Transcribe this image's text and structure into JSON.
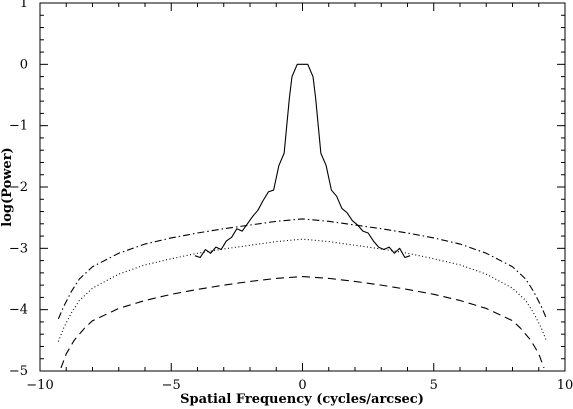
{
  "chart_data": {
    "type": "line",
    "title": "",
    "xlabel": "Spatial Frequency (cycles/arcsec)",
    "ylabel": "log(Power)",
    "xlim": [
      -10,
      10
    ],
    "ylim": [
      -5,
      1
    ],
    "xticks": [
      -10,
      -5,
      0,
      5,
      10
    ],
    "yticks": [
      -5,
      -4,
      -3,
      -2,
      -1,
      0,
      1
    ],
    "xtick_labels": [
      "−10",
      "−5",
      "0",
      "5",
      "10"
    ],
    "ytick_labels": [
      "−5",
      "−4",
      "−3",
      "−2",
      "−1",
      "0",
      "1"
    ],
    "grid": false,
    "legend": "none",
    "series": [
      {
        "style": "solid",
        "color": "#000000",
        "x": [
          -4.1,
          -3.9,
          -3.7,
          -3.5,
          -3.3,
          -3.1,
          -2.9,
          -2.7,
          -2.5,
          -2.3,
          -2.1,
          -1.9,
          -1.7,
          -1.5,
          -1.3,
          -1.1,
          -0.9,
          -0.7,
          -0.5,
          -0.4,
          -0.2,
          0.0,
          0.2,
          0.4,
          0.5,
          0.7,
          0.9,
          1.1,
          1.3,
          1.5,
          1.7,
          1.9,
          2.1,
          2.3,
          2.5,
          2.7,
          2.9,
          3.1,
          3.3,
          3.5,
          3.7,
          3.9,
          4.1
        ],
        "y": [
          -3.12,
          -3.15,
          -3.02,
          -3.08,
          -2.98,
          -3.02,
          -2.88,
          -2.82,
          -2.68,
          -2.72,
          -2.6,
          -2.48,
          -2.38,
          -2.22,
          -2.08,
          -2.05,
          -1.65,
          -1.45,
          -0.55,
          -0.2,
          0.0,
          0.0,
          0.0,
          -0.2,
          -0.55,
          -1.45,
          -1.65,
          -2.05,
          -2.15,
          -2.35,
          -2.42,
          -2.55,
          -2.62,
          -2.72,
          -2.75,
          -2.88,
          -2.98,
          -3.02,
          -2.98,
          -3.08,
          -3.0,
          -3.15,
          -3.12
        ]
      },
      {
        "style": "dash-dot",
        "color": "#000000",
        "x": [
          -9.3,
          -9.1,
          -8.8,
          -8.5,
          -8.0,
          -7.0,
          -6.0,
          -5.0,
          -4.0,
          -3.0,
          -2.0,
          -1.0,
          0.0,
          1.0,
          2.0,
          3.0,
          4.0,
          5.0,
          6.0,
          7.0,
          8.0,
          8.5,
          8.8,
          9.1,
          9.3
        ],
        "y": [
          -4.15,
          -3.95,
          -3.7,
          -3.5,
          -3.3,
          -3.08,
          -2.93,
          -2.83,
          -2.75,
          -2.68,
          -2.62,
          -2.56,
          -2.52,
          -2.56,
          -2.62,
          -2.68,
          -2.75,
          -2.83,
          -2.93,
          -3.08,
          -3.3,
          -3.5,
          -3.7,
          -3.95,
          -4.15
        ]
      },
      {
        "style": "dotted",
        "color": "#000000",
        "x": [
          -9.3,
          -9.1,
          -8.8,
          -8.5,
          -8.0,
          -7.0,
          -6.0,
          -5.0,
          -4.0,
          -3.0,
          -2.0,
          -1.0,
          0.0,
          1.0,
          2.0,
          3.0,
          4.0,
          5.0,
          6.0,
          7.0,
          8.0,
          8.5,
          8.8,
          9.1,
          9.3
        ],
        "y": [
          -4.52,
          -4.3,
          -4.05,
          -3.85,
          -3.65,
          -3.42,
          -3.27,
          -3.17,
          -3.08,
          -3.01,
          -2.95,
          -2.89,
          -2.85,
          -2.89,
          -2.95,
          -3.01,
          -3.08,
          -3.17,
          -3.27,
          -3.42,
          -3.65,
          -3.85,
          -4.05,
          -4.3,
          -4.52
        ]
      },
      {
        "style": "dashed",
        "color": "#000000",
        "x": [
          -9.2,
          -9.0,
          -8.7,
          -8.3,
          -8.0,
          -7.0,
          -6.0,
          -5.0,
          -4.0,
          -3.0,
          -2.0,
          -1.0,
          0.0,
          1.0,
          2.0,
          3.0,
          4.0,
          5.0,
          6.0,
          7.0,
          8.0,
          8.3,
          8.7,
          9.0,
          9.2
        ],
        "y": [
          -4.95,
          -4.72,
          -4.5,
          -4.3,
          -4.18,
          -3.98,
          -3.85,
          -3.75,
          -3.67,
          -3.6,
          -3.54,
          -3.49,
          -3.46,
          -3.49,
          -3.54,
          -3.6,
          -3.67,
          -3.75,
          -3.85,
          -3.98,
          -4.18,
          -4.3,
          -4.5,
          -4.72,
          -4.95
        ]
      }
    ]
  }
}
